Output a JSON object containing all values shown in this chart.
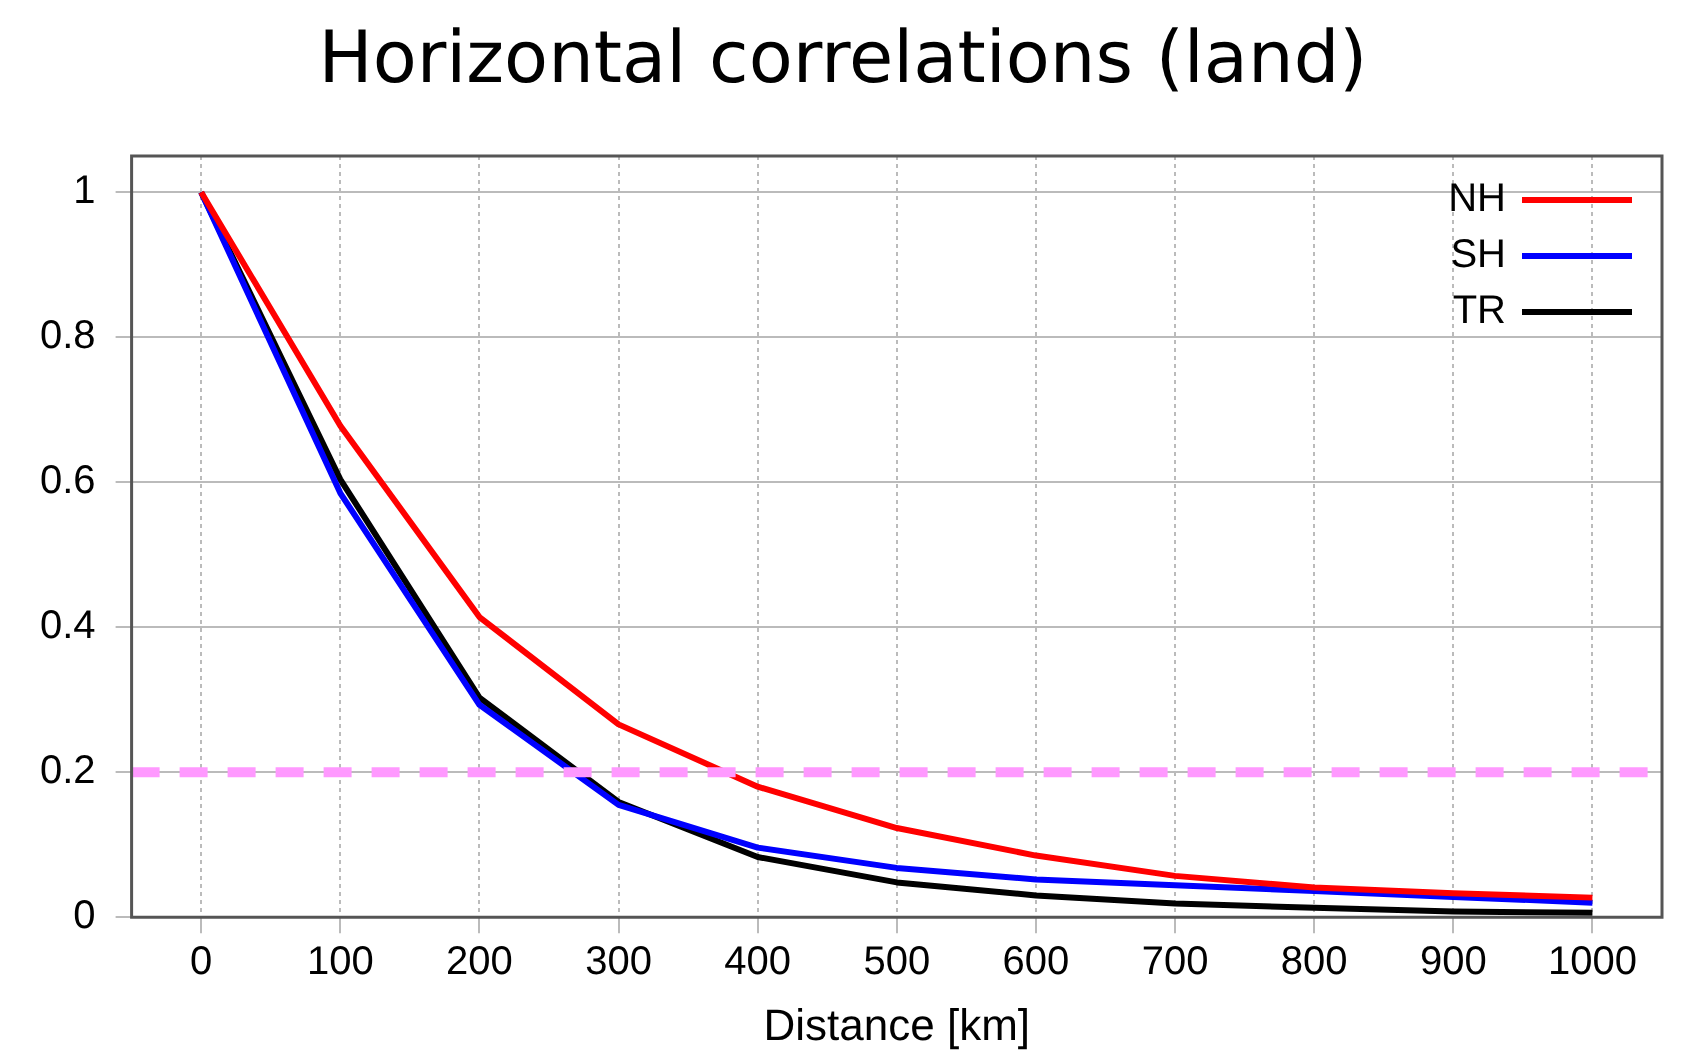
{
  "chart_data": {
    "type": "line",
    "title": "Horizontal correlations (land)",
    "xlabel": "Distance [km]",
    "x": [
      0,
      100,
      200,
      300,
      400,
      500,
      600,
      700,
      800,
      900,
      1000
    ],
    "series": [
      {
        "name": "NH",
        "color": "#ff0000",
        "values": [
          1,
          0.678,
          0.414,
          0.266,
          0.18,
          0.123,
          0.085,
          0.057,
          0.041,
          0.033,
          0.027
        ]
      },
      {
        "name": "SH",
        "color": "#0000ff",
        "values": [
          1,
          0.585,
          0.293,
          0.155,
          0.096,
          0.068,
          0.052,
          0.044,
          0.036,
          0.028,
          0.02
        ]
      },
      {
        "name": "TR",
        "color": "#000000",
        "values": [
          1,
          0.604,
          0.303,
          0.159,
          0.083,
          0.048,
          0.03,
          0.019,
          0.013,
          0.008,
          0.006
        ]
      }
    ],
    "xlim": [
      -50,
      1050
    ],
    "xticks": [
      0,
      100,
      200,
      300,
      400,
      500,
      600,
      700,
      800,
      900,
      1000
    ],
    "ylim": [
      0,
      1.05
    ],
    "yticks": [
      0,
      0.2,
      0.4,
      0.6,
      0.8,
      1
    ],
    "ref_lines": [
      {
        "axis": "y",
        "value": 0.2,
        "color": "#ff99ff",
        "line_style": "dashed"
      }
    ],
    "grid": true,
    "legend": "top right",
    "marker": "none",
    "line_style": "solid"
  }
}
